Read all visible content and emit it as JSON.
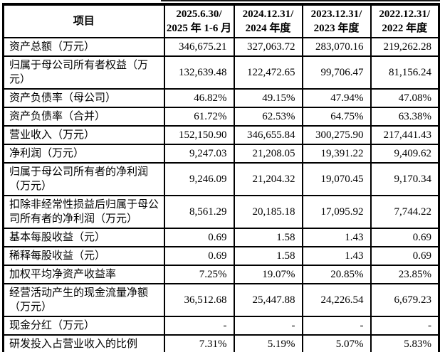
{
  "table": {
    "header": {
      "item_label": "项目",
      "periods": [
        {
          "line1": "2025.6.30/",
          "line2": "2025 年 1-6 月"
        },
        {
          "line1": "2024.12.31/",
          "line2": "2024 年度"
        },
        {
          "line1": "2023.12.31/",
          "line2": "2023 年度"
        },
        {
          "line1": "2022.12.31/",
          "line2": "2022 年度"
        }
      ]
    },
    "rows": [
      {
        "label": "资产总额（万元）",
        "values": [
          "346,675.21",
          "327,063.72",
          "283,070.16",
          "219,262.28"
        ]
      },
      {
        "label": "归属于母公司所有者权益（万元）",
        "values": [
          "132,639.48",
          "122,472.65",
          "99,706.47",
          "81,156.24"
        ]
      },
      {
        "label": "资产负债率（母公司）",
        "values": [
          "46.82%",
          "49.15%",
          "47.94%",
          "47.08%"
        ]
      },
      {
        "label": "资产负债率（合并）",
        "values": [
          "61.72%",
          "62.53%",
          "64.75%",
          "63.38%"
        ]
      },
      {
        "label": "营业收入（万元）",
        "values": [
          "152,150.90",
          "346,655.84",
          "300,275.90",
          "217,441.43"
        ]
      },
      {
        "label": "净利润（万元）",
        "values": [
          "9,247.03",
          "21,208.05",
          "19,391.22",
          "9,409.62"
        ]
      },
      {
        "label": "归属于母公司所有者的净利润（万元）",
        "values": [
          "9,246.09",
          "21,204.32",
          "19,070.45",
          "9,170.34"
        ]
      },
      {
        "label": "扣除非经常性损益后归属于母公司所有者的净利润（万元）",
        "values": [
          "8,561.29",
          "20,185.18",
          "17,095.92",
          "7,744.22"
        ]
      },
      {
        "label": "基本每股收益（元）",
        "values": [
          "0.69",
          "1.58",
          "1.43",
          "0.69"
        ]
      },
      {
        "label": "稀释每股收益（元）",
        "values": [
          "0.69",
          "1.58",
          "1.43",
          "0.69"
        ]
      },
      {
        "label": "加权平均净资产收益率",
        "values": [
          "7.25%",
          "19.07%",
          "20.85%",
          "23.85%"
        ]
      },
      {
        "label": "经营活动产生的现金流量净额（万元）",
        "values": [
          "36,512.68",
          "25,447.88",
          "24,226.54",
          "6,679.23"
        ]
      },
      {
        "label": "现金分红（万元）",
        "values": [
          "-",
          "-",
          "-",
          "-"
        ]
      },
      {
        "label": "研发投入占营业收入的比例",
        "values": [
          "7.31%",
          "5.19%",
          "5.07%",
          "5.83%"
        ]
      }
    ]
  }
}
